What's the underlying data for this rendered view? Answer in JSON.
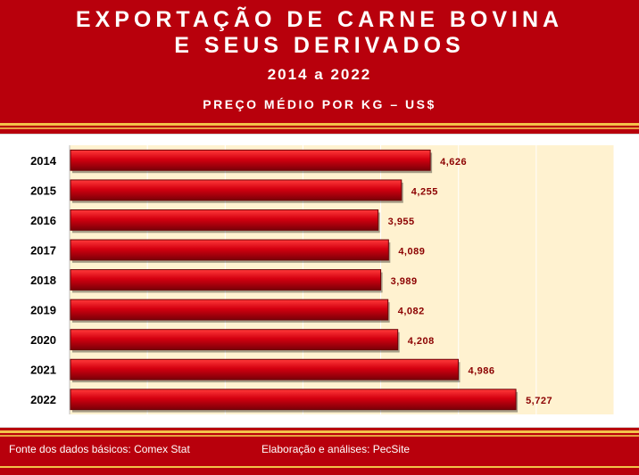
{
  "header": {
    "title_line1": "EXPORTAÇÃO DE CARNE BOVINA",
    "title_line2": "E SEUS DERIVADOS",
    "period": "2014 a 2022",
    "unit": "PREÇO MÉDIO POR KG – US$"
  },
  "footer": {
    "source": "Fonte dos dados básicos: Comex Stat",
    "elaboration": "Elaboração e análises: PecSite"
  },
  "colors": {
    "background": "#b8000c",
    "bar": "#d40010",
    "plot_area": "#fff2d0",
    "label": "#8b0000",
    "accent_line": "#f3c24a"
  },
  "chart_data": {
    "type": "bar",
    "orientation": "horizontal",
    "categories": [
      "2014",
      "2015",
      "2016",
      "2017",
      "2018",
      "2019",
      "2020",
      "2021",
      "2022"
    ],
    "values": [
      4.626,
      4.255,
      3.955,
      4.089,
      3.989,
      4.082,
      4.208,
      4.986,
      5.727
    ],
    "value_labels": [
      "4,626",
      "4,255",
      "3,955",
      "4,089",
      "3,989",
      "4,082",
      "4,208",
      "4,986",
      "5,727"
    ],
    "title": "EXPORTAÇÃO DE CARNE BOVINA E SEUS DERIVADOS",
    "subtitle": "2014 a 2022",
    "xlabel": "",
    "ylabel": "",
    "xlim": [
      0,
      7
    ],
    "grid": true,
    "legend": "none"
  }
}
